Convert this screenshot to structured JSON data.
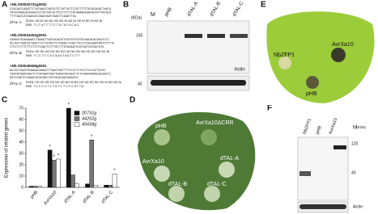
{
  "panels": {
    "A": {
      "label": "A",
      "blocks": [
        {
          "id": ">Nb.S00020731g0002",
          "seq": [
            "CCACAATCAAGTTCTATAAATCAGTATTCTATTATTCTATTTTCTATACACACTAATA",
            "TATATAAGCACACAGTCCTATTATCGTTCCTTCTTTATAAAAACAACACATTTATACA",
            "TTTTAACCATAGACACCAAATAATTAAGTTCAAGTTCA"
          ],
          "tal": "dTAL-A",
          "rvd": "RVDs: HD NI NG NG HD NG NI NG NI HD NI HD NI HD NI",
          "ebe": "EBE: T C T A T T T T C T A T A C A C A C"
        },
        {
          "id": ">Nb.S00044252g0001",
          "seq": [
            "CAAAGTGCAAAAACCTAAGATTAGTACACATGTATGTGTATATAGCACACACATCCC",
            "GCCATTTAACGTTAACTTCCTGTATTCCTAGACTTGGTTTCCTCCACAAATAATCTTTTC",
            "CTCCTTCTTCTTCTTCTCGACTCTTTGCTTTGTAGAATATATAGTCATAATATG"
          ],
          "tal": "dTAL-B",
          "rvd": "RVDs: NG HD NG NG HD NG HD NG HD NG HD NG HD NG NI",
          "ebe": "EBE: T C C T C C A C A A A T A A T C T T"
        },
        {
          "id": ">Nb.S00045658g0001",
          "seq": [
            "ACCGTTAAATGCAAGACAAAGTTTAACCGGTTTTCCCCTCTATCTCCCATTATAT",
            "TAATATAAATAGCTCTCATAAATAGTTGAACCACAGCTTCTCAAACAAAACACAACTC",
            "GGTCCAGTCCAAAATACACAACTATCACACAATAAAATG"
          ],
          "tal": "dTAL-C",
          "rvd": "RVDs: HD HD HD HD NG HD NG NI NG HD NG HD HD HD NI NG NG NI",
          "ebe": "EBE: T C C C C T C T A T C T C C C A T T A"
        }
      ]
    },
    "B": {
      "label": "B",
      "marker": "M",
      "unit": "(KDa)",
      "sizes": [
        "150",
        "40"
      ],
      "lanes": [
        "pHB",
        "dTAL-A",
        "dTAL-B",
        "dTAL-C"
      ],
      "control": "Actin"
    },
    "C": {
      "label": "C",
      "type": "bar",
      "ylabel": "Expression of related genes",
      "categories": [
        "pHB",
        "AvrXa10",
        "dTAL-A",
        "dTAL-B",
        "dTAL-C"
      ],
      "series": [
        {
          "name": "20731g",
          "color": "#111111",
          "values": [
            1,
            33,
            70,
            3,
            2
          ]
        },
        {
          "name": "44252g",
          "color": "#777777",
          "values": [
            1,
            24,
            11,
            42,
            2
          ]
        },
        {
          "name": "45658g",
          "color": "#ffffff",
          "values": [
            1,
            25,
            3,
            2,
            12
          ]
        }
      ],
      "ylim": [
        0,
        70
      ],
      "yticks": [
        0,
        10,
        20,
        30,
        40,
        50,
        60,
        70
      ],
      "star": "*"
    },
    "D": {
      "label": "D",
      "spots": [
        "pHB",
        "AvrXa10ΔCRR",
        "AvrXa10",
        "dTAL-A",
        "dTAL-B",
        "dTAL-C"
      ]
    },
    "E": {
      "label": "E",
      "spots": [
        "AvrXa10",
        "NbZFP1",
        "pHB"
      ]
    },
    "F": {
      "label": "F",
      "lanes": [
        "NbZFP1",
        "pHB",
        "AvrXa10"
      ],
      "marker": "M",
      "unit": "(KDa)",
      "sizes": [
        "120",
        "40"
      ],
      "control": "Actin"
    }
  }
}
